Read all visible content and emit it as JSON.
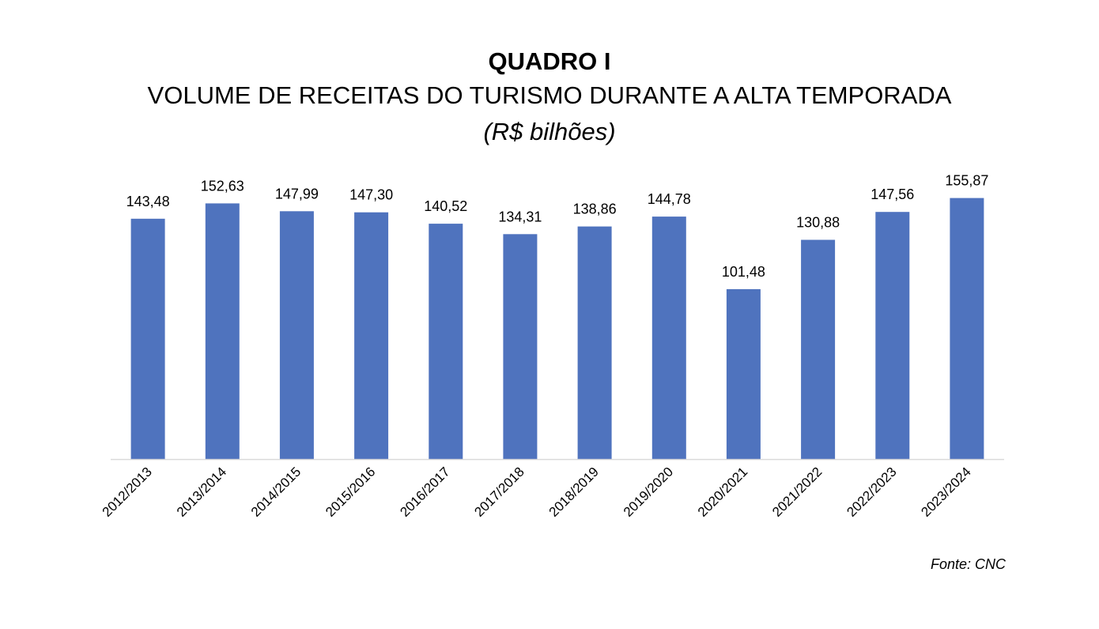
{
  "chart_data": {
    "type": "bar",
    "label": "QUADRO I",
    "title": "VOLUME DE RECEITAS DO TURISMO DURANTE A ALTA TEMPORADA",
    "subtitle": "(R$ bilhões)",
    "categories": [
      "2012/2013",
      "2013/2014",
      "2014/2015",
      "2015/2016",
      "2016/2017",
      "2017/2018",
      "2018/2019",
      "2019/2020",
      "2020/2021",
      "2021/2022",
      "2022/2023",
      "2023/2024"
    ],
    "values": [
      143.48,
      152.63,
      147.99,
      147.3,
      140.52,
      134.31,
      138.86,
      144.78,
      101.48,
      130.88,
      147.56,
      155.87
    ],
    "data_labels": [
      "143,48",
      "152,63",
      "147,99",
      "147,30",
      "140,52",
      "134,31",
      "138,86",
      "144,78",
      "101,48",
      "130,88",
      "147,56",
      "155,87"
    ],
    "ylim": [
      0,
      175
    ],
    "grid": false,
    "legend": "none",
    "source": "Fonte: CNC",
    "bar_color": "#4f73be",
    "axis_color": "#d9d9d9"
  }
}
